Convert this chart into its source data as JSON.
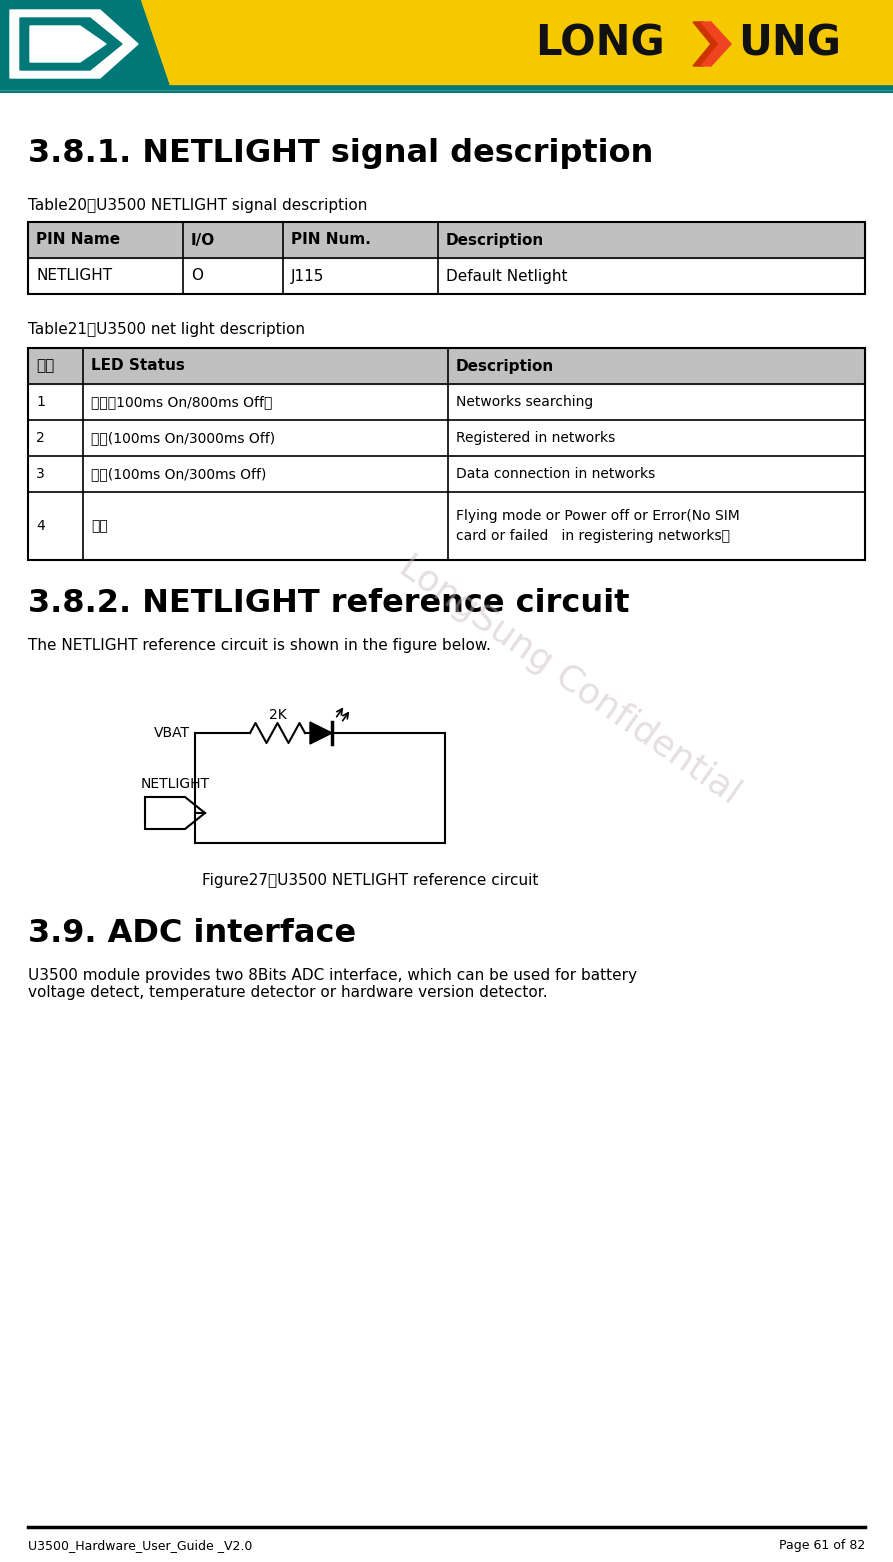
{
  "page_title": "3.8.1. NETLIGHT signal description",
  "table20_caption": "Table20：U3500 NETLIGHT signal description",
  "table20_headers": [
    "PIN Name",
    "I/O",
    "PIN Num.",
    "Description"
  ],
  "table20_rows": [
    [
      "NETLIGHT",
      "O",
      "J115",
      "Default Netlight"
    ]
  ],
  "table21_caption": "Table21：U3500 net light description",
  "table21_headers": [
    "模式",
    "LED Status",
    "Description"
  ],
  "table21_rows": [
    [
      "1",
      "快闪（100ms On/800ms Off）",
      "Networks searching"
    ],
    [
      "2",
      "慢闪(100ms On/3000ms Off)",
      "Registered in networks"
    ],
    [
      "3",
      "速闪(100ms On/300ms Off)",
      "Data connection in networks"
    ],
    [
      "4",
      "关闭",
      "Flying mode or Power off or Error(No SIM\ncard or failed   in registering networks）"
    ]
  ],
  "section382_title": "3.8.2. NETLIGHT reference circuit",
  "section382_body": "The NETLIGHT reference circuit is shown in the figure below.",
  "figure27_caption": "Figure27：U3500 NETLIGHT reference circuit",
  "section39_title": "3.9. ADC interface",
  "section39_body": "U3500 module provides two 8Bits ADC interface, which can be used for battery\nvoltage detect, temperature detector or hardware version detector.",
  "footer_left": "U3500_Hardware_User_Guide _V2.0",
  "footer_right": "Page 61 of 82",
  "header_yellow": "#F5C800",
  "header_teal": "#007878",
  "table_header_bg": "#C0C0C0",
  "page_bg": "#FFFFFF"
}
